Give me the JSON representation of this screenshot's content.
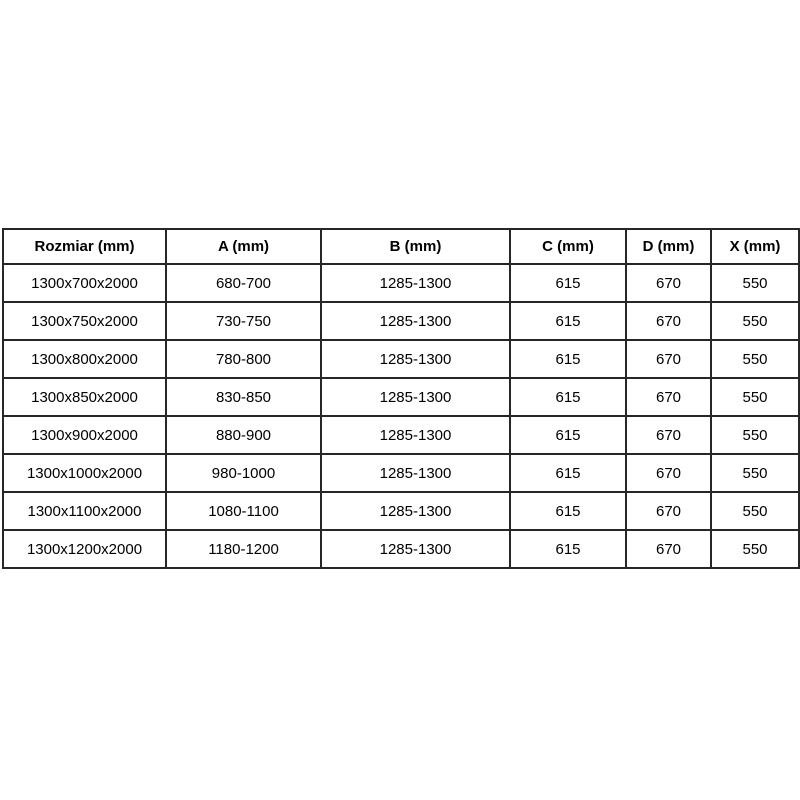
{
  "chart_data": {
    "type": "table",
    "title": "",
    "columns": [
      "Rozmiar (mm)",
      "A (mm)",
      "B (mm)",
      "C (mm)",
      "D (mm)",
      "X (mm)"
    ],
    "rows": [
      [
        "1300x700x2000",
        "680-700",
        "1285-1300",
        "615",
        "670",
        "550"
      ],
      [
        "1300x750x2000",
        "730-750",
        "1285-1300",
        "615",
        "670",
        "550"
      ],
      [
        "1300x800x2000",
        "780-800",
        "1285-1300",
        "615",
        "670",
        "550"
      ],
      [
        "1300x850x2000",
        "830-850",
        "1285-1300",
        "615",
        "670",
        "550"
      ],
      [
        "1300x900x2000",
        "880-900",
        "1285-1300",
        "615",
        "670",
        "550"
      ],
      [
        "1300x1000x2000",
        "980-1000",
        "1285-1300",
        "615",
        "670",
        "550"
      ],
      [
        "1300x1100x2000",
        "1080-1100",
        "1285-1300",
        "615",
        "670",
        "550"
      ],
      [
        "1300x1200x2000",
        "1180-1200",
        "1285-1300",
        "615",
        "670",
        "550"
      ]
    ]
  },
  "colors": {
    "border": "#262626",
    "text": "#000000",
    "background": "#ffffff"
  }
}
